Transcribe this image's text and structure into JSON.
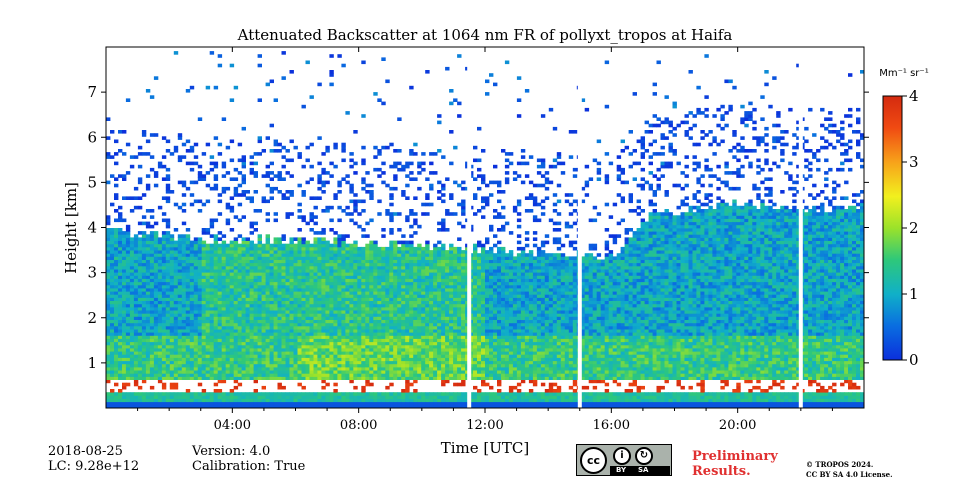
{
  "chart_data": {
    "type": "heatmap",
    "title": "Attenuated Backscatter at 1064 nm FR of pollyxt_tropos at Haifa",
    "xlabel": "Time [UTC]",
    "ylabel": "Height [km]",
    "xlim": [
      0,
      24
    ],
    "ylim": [
      0,
      8
    ],
    "x_ticks": [
      {
        "value": 4,
        "label": "04:00"
      },
      {
        "value": 8,
        "label": "08:00"
      },
      {
        "value": 12,
        "label": "12:00"
      },
      {
        "value": 16,
        "label": "16:00"
      },
      {
        "value": 20,
        "label": "20:00"
      }
    ],
    "y_ticks": [
      {
        "value": 1,
        "label": "1"
      },
      {
        "value": 2,
        "label": "2"
      },
      {
        "value": 3,
        "label": "3"
      },
      {
        "value": 4,
        "label": "4"
      },
      {
        "value": 5,
        "label": "5"
      },
      {
        "value": 6,
        "label": "6"
      },
      {
        "value": 7,
        "label": "7"
      }
    ],
    "colorbar": {
      "unit": "Mm⁻¹ sr⁻¹",
      "range": [
        0,
        4
      ],
      "ticks": [
        {
          "value": 0,
          "label": "0"
        },
        {
          "value": 1,
          "label": "1"
        },
        {
          "value": 2,
          "label": "2"
        },
        {
          "value": 3,
          "label": "3"
        },
        {
          "value": 4,
          "label": "4"
        }
      ],
      "colors": [
        "#0b2fdc",
        "#0a6ee0",
        "#10b0c8",
        "#2ec87a",
        "#9be22a",
        "#f2f01e",
        "#f7a21a",
        "#f04a12",
        "#d42a10"
      ]
    },
    "layers": [
      {
        "name": "surface",
        "from": 0.0,
        "to": 0.12,
        "value": 0.3
      },
      {
        "name": "near-range",
        "from": 0.12,
        "to": 0.32,
        "value": 1.2
      },
      {
        "name": "saturated",
        "from": 0.32,
        "to": 0.62,
        "value": 4.0
      },
      {
        "name": "lower-aerosol",
        "from": 0.62,
        "to": 1.6,
        "value": 1.4
      },
      {
        "name": "upper-aerosol",
        "from": 1.6,
        "to": 3.8,
        "value": 0.9
      }
    ],
    "aerosol_top_km": [
      [
        0,
        3.9
      ],
      [
        3,
        3.7
      ],
      [
        6,
        3.7
      ],
      [
        9,
        3.6
      ],
      [
        11.5,
        3.5
      ],
      [
        14,
        3.4
      ],
      [
        16,
        3.3
      ],
      [
        17,
        4.2
      ],
      [
        20,
        4.5
      ],
      [
        22,
        4.3
      ],
      [
        24,
        4.5
      ]
    ],
    "gaps_utc": [
      11.5,
      15.0,
      22.0
    ]
  },
  "footer": {
    "date": "2018-08-25",
    "lc": "LC: 9.28e+12",
    "version": "Version: 4.0",
    "calibration": "Calibration: True",
    "preliminary_line1": "Preliminary",
    "preliminary_line2": "Results.",
    "copyright_line1": "© TROPOS 2024.",
    "copyright_line2": "CC BY SA 4.0 License.",
    "license_cc": "cc",
    "license_by": "BY",
    "license_sa": "SA"
  }
}
